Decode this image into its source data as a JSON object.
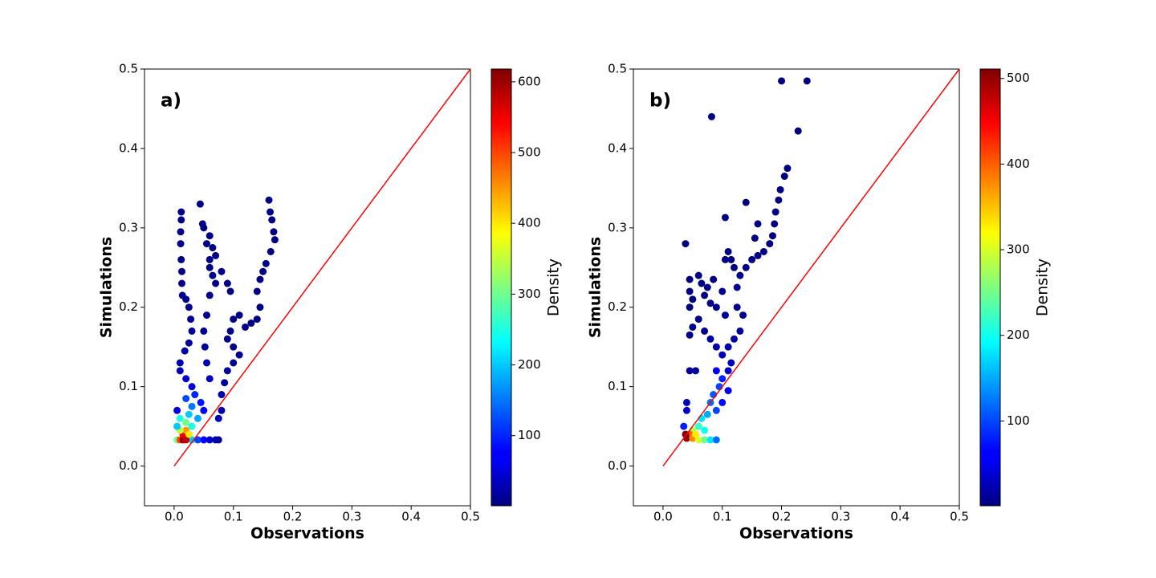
{
  "chart_data": [
    {
      "type": "scatter",
      "annotation": "a)",
      "xlabel": "Observations",
      "ylabel": "Simulations",
      "xlim": [
        -0.05,
        0.5
      ],
      "ylim": [
        -0.05,
        0.5
      ],
      "xticks": [
        {
          "value": 0,
          "label": "0.0"
        },
        0.1,
        0.2,
        0.3,
        0.4,
        0.5
      ],
      "yticks": [
        {
          "value": 0,
          "label": "0.0"
        },
        0.1,
        0.2,
        0.3,
        0.4,
        0.5
      ],
      "reference_line": {
        "x": [
          0,
          0.5
        ],
        "y": [
          0,
          0.5
        ],
        "color": "#ff0000"
      },
      "colormap": "jet",
      "colorbar_label": "Density",
      "clim": [
        1,
        618
      ],
      "cticks": [
        100,
        200,
        300,
        400,
        500,
        600
      ],
      "x": [
        0.012,
        0.012,
        0.011,
        0.011,
        0.012,
        0.013,
        0.013,
        0.014,
        0.02,
        0.025,
        0.028,
        0.03,
        0.025,
        0.018,
        0.01,
        0.01,
        0.02,
        0.03,
        0.044,
        0.048,
        0.05,
        0.06,
        0.055,
        0.065,
        0.07,
        0.06,
        0.06,
        0.065,
        0.07,
        0.08,
        0.09,
        0.095,
        0.06,
        0.055,
        0.05,
        0.052,
        0.055,
        0.06,
        0.16,
        0.162,
        0.165,
        0.168,
        0.17,
        0.163,
        0.155,
        0.15,
        0.145,
        0.14,
        0.145,
        0.14,
        0.13,
        0.12,
        0.11,
        0.1,
        0.095,
        0.09,
        0.1,
        0.11,
        0.1,
        0.09,
        0.085,
        0.08,
        0.08,
        0.075,
        0.03,
        0.04,
        0.05,
        0.06,
        0.07,
        0.075,
        0.005,
        0.01,
        0.015,
        0.02,
        0.015,
        0.02,
        0.025,
        0.01,
        0.02,
        0.03,
        0.025,
        0.03,
        0.04,
        0.035,
        0.045,
        0.05,
        0.005,
        0.005,
        0.01,
        0.02
      ],
      "values": [
        0.32,
        0.31,
        0.295,
        0.28,
        0.26,
        0.245,
        0.23,
        0.215,
        0.21,
        0.2,
        0.185,
        0.17,
        0.155,
        0.145,
        0.13,
        0.12,
        0.11,
        0.1,
        0.33,
        0.305,
        0.3,
        0.29,
        0.28,
        0.275,
        0.265,
        0.26,
        0.25,
        0.24,
        0.23,
        0.245,
        0.23,
        0.22,
        0.215,
        0.19,
        0.17,
        0.15,
        0.13,
        0.11,
        0.335,
        0.32,
        0.31,
        0.295,
        0.285,
        0.27,
        0.255,
        0.245,
        0.235,
        0.22,
        0.2,
        0.185,
        0.18,
        0.175,
        0.19,
        0.185,
        0.17,
        0.16,
        0.15,
        0.14,
        0.13,
        0.12,
        0.105,
        0.09,
        0.07,
        0.06,
        0.033,
        0.033,
        0.033,
        0.033,
        0.033,
        0.033,
        0.033,
        0.033,
        0.033,
        0.033,
        0.04,
        0.045,
        0.04,
        0.045,
        0.055,
        0.05,
        0.065,
        0.075,
        0.06,
        0.09,
        0.08,
        0.07,
        0.07,
        0.05,
        0.06,
        0.085
      ],
      "density": [
        5,
        5,
        5,
        5,
        5,
        8,
        8,
        10,
        10,
        12,
        15,
        15,
        20,
        25,
        30,
        35,
        50,
        60,
        5,
        5,
        5,
        5,
        5,
        5,
        5,
        8,
        8,
        8,
        8,
        8,
        8,
        8,
        10,
        12,
        15,
        20,
        30,
        40,
        5,
        5,
        5,
        5,
        5,
        5,
        5,
        5,
        5,
        5,
        5,
        5,
        5,
        5,
        5,
        5,
        8,
        10,
        10,
        10,
        12,
        15,
        20,
        25,
        30,
        35,
        200,
        120,
        80,
        50,
        30,
        20,
        300,
        500,
        610,
        580,
        550,
        450,
        400,
        350,
        300,
        250,
        200,
        150,
        180,
        100,
        90,
        80,
        60,
        200,
        250,
        120
      ]
    },
    {
      "type": "scatter",
      "annotation": "b)",
      "xlabel": "Observations",
      "ylabel": "Simulations",
      "xlim": [
        -0.05,
        0.5
      ],
      "ylim": [
        -0.05,
        0.5
      ],
      "xticks": [
        {
          "value": 0,
          "label": "0.0"
        },
        0.1,
        0.2,
        0.3,
        0.4,
        0.5
      ],
      "yticks": [
        {
          "value": 0,
          "label": "0.0"
        },
        0.1,
        0.2,
        0.3,
        0.4,
        0.5
      ],
      "reference_line": {
        "x": [
          0,
          0.5
        ],
        "y": [
          0,
          0.5
        ],
        "color": "#ff0000"
      },
      "colormap": "jet",
      "colorbar_label": "Density",
      "clim": [
        1,
        511
      ],
      "cticks": [
        100,
        200,
        300,
        400,
        500
      ],
      "x": [
        0.2,
        0.243,
        0.082,
        0.228,
        0.21,
        0.205,
        0.198,
        0.14,
        0.105,
        0.038,
        0.16,
        0.155,
        0.195,
        0.19,
        0.188,
        0.185,
        0.18,
        0.17,
        0.16,
        0.15,
        0.14,
        0.13,
        0.125,
        0.11,
        0.105,
        0.115,
        0.12,
        0.045,
        0.06,
        0.065,
        0.075,
        0.085,
        0.045,
        0.05,
        0.045,
        0.07,
        0.08,
        0.09,
        0.06,
        0.05,
        0.045,
        0.07,
        0.08,
        0.09,
        0.1,
        0.11,
        0.12,
        0.13,
        0.135,
        0.125,
        0.1,
        0.105,
        0.045,
        0.055,
        0.04,
        0.04,
        0.035,
        0.09,
        0.1,
        0.095,
        0.085,
        0.08,
        0.09,
        0.1,
        0.11,
        0.075,
        0.065,
        0.06,
        0.05,
        0.045,
        0.04,
        0.038,
        0.05,
        0.06,
        0.07,
        0.08,
        0.09,
        0.055,
        0.07,
        0.11,
        0.115
      ],
      "values": [
        0.485,
        0.485,
        0.44,
        0.422,
        0.375,
        0.365,
        0.348,
        0.332,
        0.313,
        0.28,
        0.305,
        0.287,
        0.335,
        0.32,
        0.305,
        0.29,
        0.28,
        0.27,
        0.265,
        0.26,
        0.25,
        0.24,
        0.225,
        0.27,
        0.26,
        0.26,
        0.25,
        0.235,
        0.24,
        0.23,
        0.225,
        0.235,
        0.22,
        0.21,
        0.2,
        0.215,
        0.205,
        0.2,
        0.185,
        0.175,
        0.165,
        0.17,
        0.16,
        0.15,
        0.14,
        0.15,
        0.16,
        0.17,
        0.19,
        0.2,
        0.22,
        0.19,
        0.12,
        0.12,
        0.08,
        0.07,
        0.05,
        0.12,
        0.11,
        0.1,
        0.09,
        0.08,
        0.07,
        0.08,
        0.095,
        0.065,
        0.06,
        0.05,
        0.045,
        0.04,
        0.035,
        0.04,
        0.035,
        0.033,
        0.033,
        0.033,
        0.033,
        0.04,
        0.045,
        0.12,
        0.13
      ],
      "density": [
        2,
        2,
        2,
        2,
        2,
        2,
        2,
        2,
        2,
        2,
        2,
        2,
        3,
        3,
        3,
        3,
        3,
        3,
        3,
        4,
        4,
        5,
        5,
        3,
        3,
        3,
        4,
        3,
        3,
        3,
        3,
        3,
        3,
        3,
        3,
        5,
        5,
        8,
        5,
        8,
        8,
        10,
        15,
        20,
        30,
        25,
        20,
        15,
        10,
        10,
        10,
        15,
        10,
        15,
        30,
        40,
        80,
        60,
        80,
        100,
        110,
        120,
        100,
        70,
        60,
        150,
        180,
        220,
        280,
        400,
        500,
        510,
        380,
        300,
        250,
        180,
        120,
        330,
        200,
        40,
        30
      ]
    }
  ]
}
